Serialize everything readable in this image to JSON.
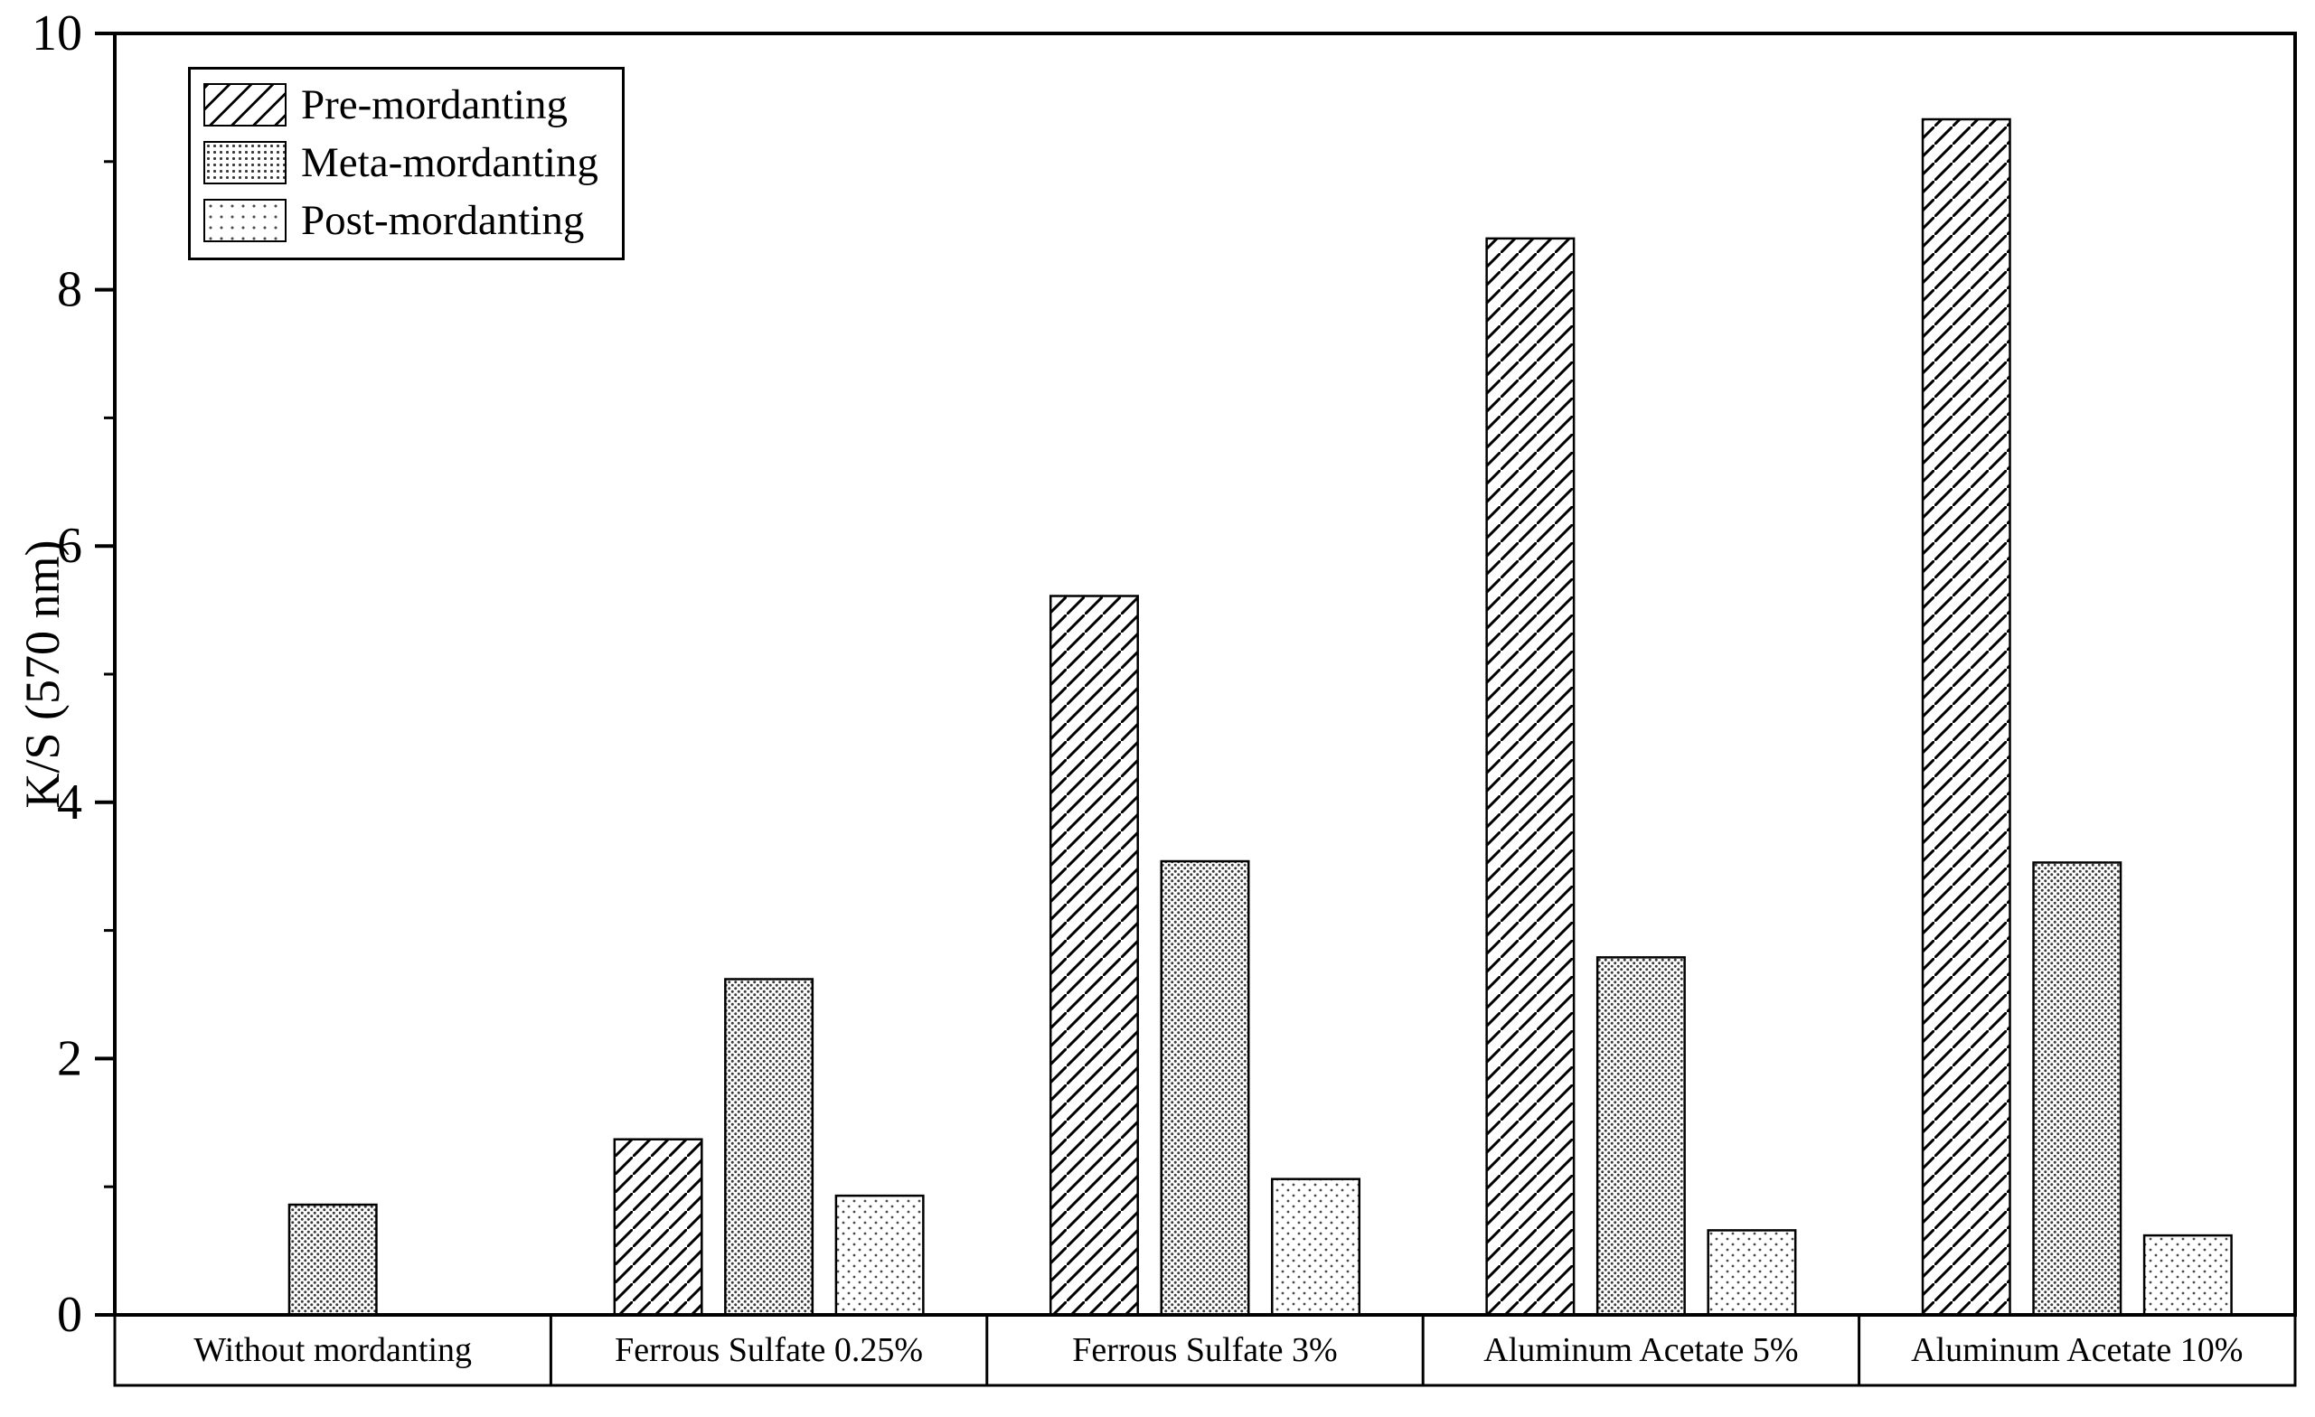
{
  "chart_data": {
    "type": "bar",
    "title": "",
    "xlabel": "",
    "ylabel": "K/S (570 nm)",
    "ylim": [
      0,
      10
    ],
    "yticks": [
      0,
      2,
      4,
      6,
      8,
      10
    ],
    "minor_yticks": [
      1,
      3,
      5,
      7,
      9
    ],
    "grid": false,
    "legend_position": "top-left",
    "categories": [
      "Without mordanting",
      "Ferrous Sulfate 0.25%",
      "Ferrous Sulfate 3%",
      "Aluminum Acetate 5%",
      "Aluminum Acetate 10%"
    ],
    "series": [
      {
        "name": "Pre-mordanting",
        "pattern": "diagonal-hatch",
        "values": [
          0,
          1.37,
          5.61,
          8.4,
          9.33
        ]
      },
      {
        "name": "Meta-mordanting",
        "pattern": "dense-dots",
        "values": [
          0.86,
          2.62,
          3.54,
          2.79,
          3.53
        ]
      },
      {
        "name": "Post-mordanting",
        "pattern": "sparse-dots",
        "values": [
          0,
          0.93,
          1.06,
          0.66,
          0.62
        ]
      }
    ],
    "colors": {
      "axis": "#000000",
      "bar_fill": "#ffffff",
      "pattern_ink": "#000000",
      "background": "#ffffff"
    }
  }
}
